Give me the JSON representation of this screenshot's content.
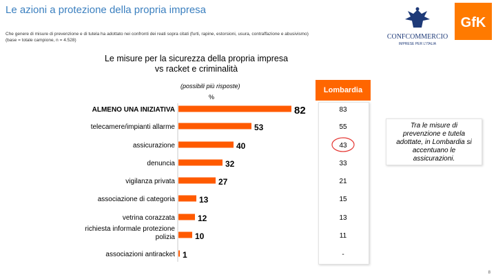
{
  "header": {
    "title": "Le azioni a protezione della propria impresa",
    "subtitle_line1": "Che genere di misure di prevenzione e di tutela ha adottato nei confronti dei reati sopra citati (furti, rapine, estorsioni, usura, contraffazione e abusivismo)",
    "subtitle_line2": "(base = totale campione, n = 4.528)"
  },
  "logos": {
    "confcommercio_text": "CONFCOMMERCIO",
    "confcommercio_tagline": "IMPRESE PER L'ITALIA",
    "gfk_text": "GfK",
    "gfk_color": "#ff7a00"
  },
  "chart_data": {
    "type": "bar",
    "orientation": "horizontal",
    "title": "Le misure per la sicurezza della propria impresa vs racket e criminalità",
    "subtitle": "(possibili più risposte)",
    "unit_label": "%",
    "categories": [
      "ALMENO UNA INIZIATIVA",
      "telecamere/impianti allarme",
      "assicurazione",
      "denuncia",
      "vigilanza privata",
      "associazione di categoria",
      "vetrina corazzata",
      "richiesta informale protezione polizia",
      "associazioni antiracket"
    ],
    "series": [
      {
        "values": [
          82,
          53,
          40,
          32,
          27,
          13,
          12,
          10,
          1
        ],
        "color": "#ff5a00"
      }
    ],
    "xlim": [
      0,
      100
    ],
    "grid": false,
    "lombardia": {
      "label": "Lombardia",
      "values": [
        "83",
        "55",
        "43",
        "33",
        "21",
        "15",
        "13",
        "11",
        "-"
      ],
      "highlighted_index": 2,
      "highlight_color": "#e53935"
    }
  },
  "note": {
    "text": "Tra le misure di prevenzione e tutela adottate, in Lombardia si accentuano le assicurazioni."
  },
  "footer": {
    "page_number": "8"
  }
}
